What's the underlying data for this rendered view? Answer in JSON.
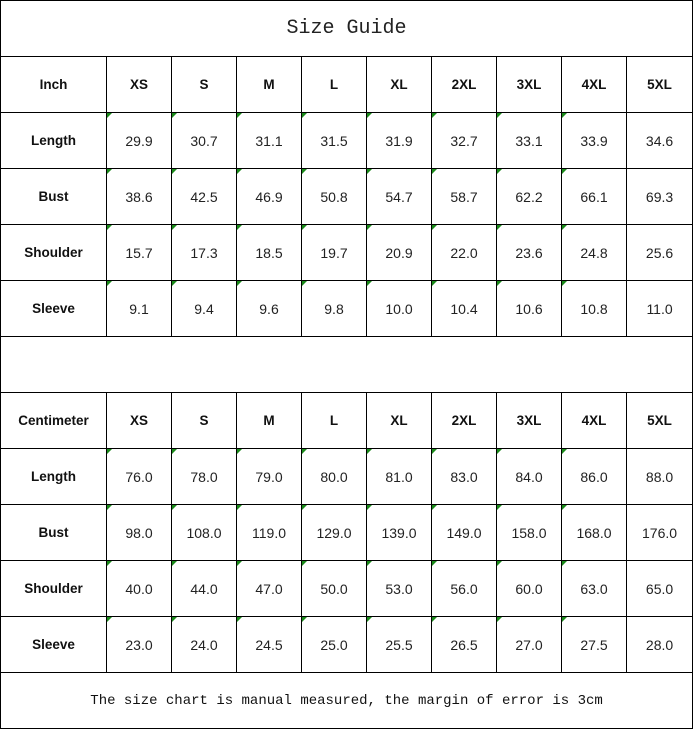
{
  "title": "Size Guide",
  "sizes": [
    "XS",
    "S",
    "M",
    "L",
    "XL",
    "2XL",
    "3XL",
    "4XL",
    "5XL"
  ],
  "tables": [
    {
      "unit": "Inch",
      "rows": [
        {
          "label": "Length",
          "values": [
            "29.9",
            "30.7",
            "31.1",
            "31.5",
            "31.9",
            "32.7",
            "33.1",
            "33.9",
            "34.6"
          ]
        },
        {
          "label": "Bust",
          "values": [
            "38.6",
            "42.5",
            "46.9",
            "50.8",
            "54.7",
            "58.7",
            "62.2",
            "66.1",
            "69.3"
          ]
        },
        {
          "label": "Shoulder",
          "values": [
            "15.7",
            "17.3",
            "18.5",
            "19.7",
            "20.9",
            "22.0",
            "23.6",
            "24.8",
            "25.6"
          ]
        },
        {
          "label": "Sleeve",
          "values": [
            "9.1",
            "9.4",
            "9.6",
            "9.8",
            "10.0",
            "10.4",
            "10.6",
            "10.8",
            "11.0"
          ]
        }
      ]
    },
    {
      "unit": "Centimeter",
      "rows": [
        {
          "label": "Length",
          "values": [
            "76.0",
            "78.0",
            "79.0",
            "80.0",
            "81.0",
            "83.0",
            "84.0",
            "86.0",
            "88.0"
          ]
        },
        {
          "label": "Bust",
          "values": [
            "98.0",
            "108.0",
            "119.0",
            "129.0",
            "139.0",
            "149.0",
            "158.0",
            "168.0",
            "176.0"
          ]
        },
        {
          "label": "Shoulder",
          "values": [
            "40.0",
            "44.0",
            "47.0",
            "50.0",
            "53.0",
            "56.0",
            "60.0",
            "63.0",
            "65.0"
          ]
        },
        {
          "label": "Sleeve",
          "values": [
            "23.0",
            "24.0",
            "24.5",
            "25.0",
            "25.5",
            "26.5",
            "27.0",
            "27.5",
            "28.0"
          ]
        }
      ]
    }
  ],
  "note": "The size chart is manual measured, the margin of error is 3cm",
  "colors": {
    "error_flag": "#1a8a1a",
    "border": "#000000"
  }
}
